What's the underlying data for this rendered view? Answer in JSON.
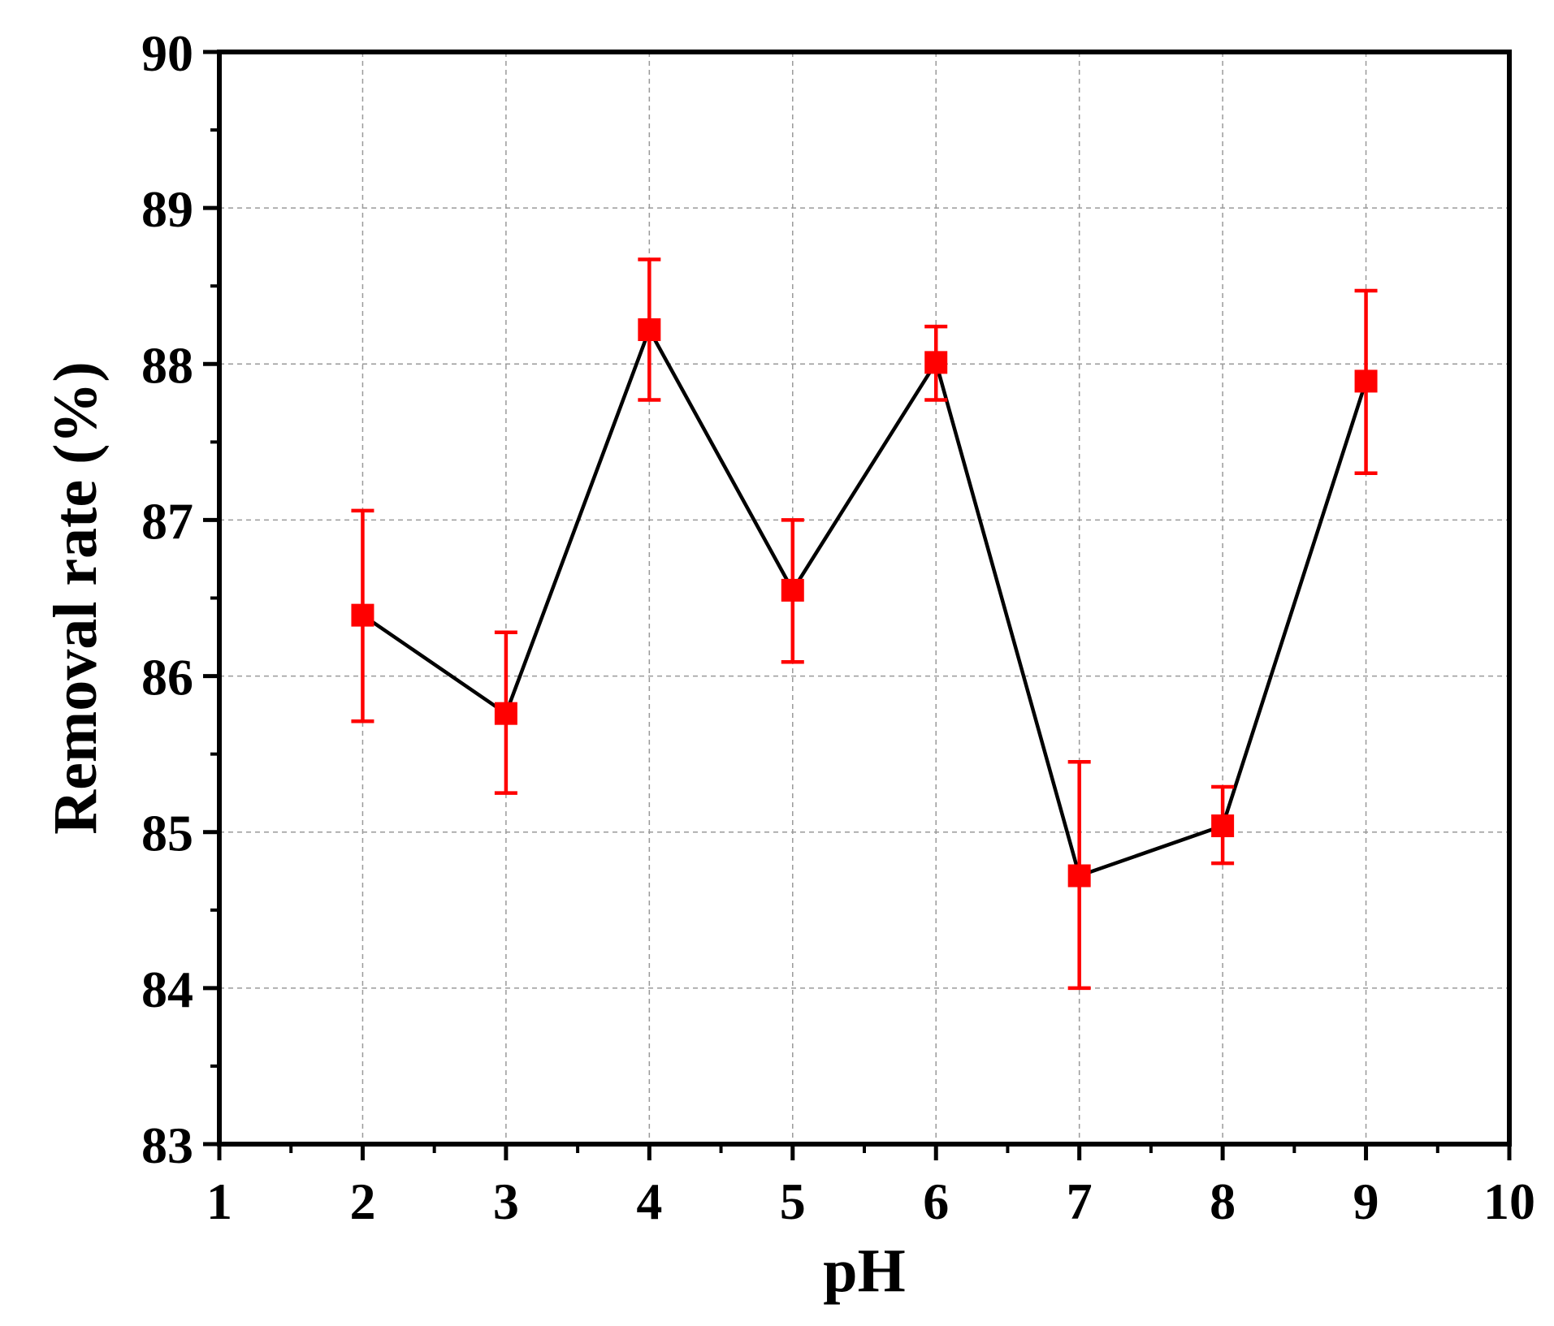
{
  "chart_data": {
    "type": "scatter",
    "xlabel": "pH",
    "ylabel": "Removal rate (%)",
    "xlim": [
      1,
      10
    ],
    "ylim": [
      83,
      90
    ],
    "x_ticks": [
      "1",
      "2",
      "3",
      "4",
      "5",
      "6",
      "7",
      "8",
      "9",
      "10"
    ],
    "y_ticks": [
      "83",
      "84",
      "85",
      "86",
      "87",
      "88",
      "89",
      "90"
    ],
    "grid": true,
    "series": [
      {
        "line_color": "#000000",
        "marker": "square",
        "marker_color": "#ff0000",
        "error_bar_color": "#ff0000",
        "points": [
          {
            "x": 2,
            "y": 86.39,
            "err_low": 85.71,
            "err_high": 87.06
          },
          {
            "x": 3,
            "y": 85.76,
            "err_low": 85.25,
            "err_high": 86.28
          },
          {
            "x": 4,
            "y": 88.22,
            "err_low": 87.77,
            "err_high": 88.67
          },
          {
            "x": 5,
            "y": 86.55,
            "err_low": 86.09,
            "err_high": 87.0
          },
          {
            "x": 6,
            "y": 88.01,
            "err_low": 87.77,
            "err_high": 88.24
          },
          {
            "x": 7,
            "y": 84.72,
            "err_low": 84.0,
            "err_high": 85.45
          },
          {
            "x": 8,
            "y": 85.04,
            "err_low": 84.8,
            "err_high": 85.29
          },
          {
            "x": 9,
            "y": 87.89,
            "err_low": 87.3,
            "err_high": 88.47
          }
        ]
      }
    ]
  }
}
